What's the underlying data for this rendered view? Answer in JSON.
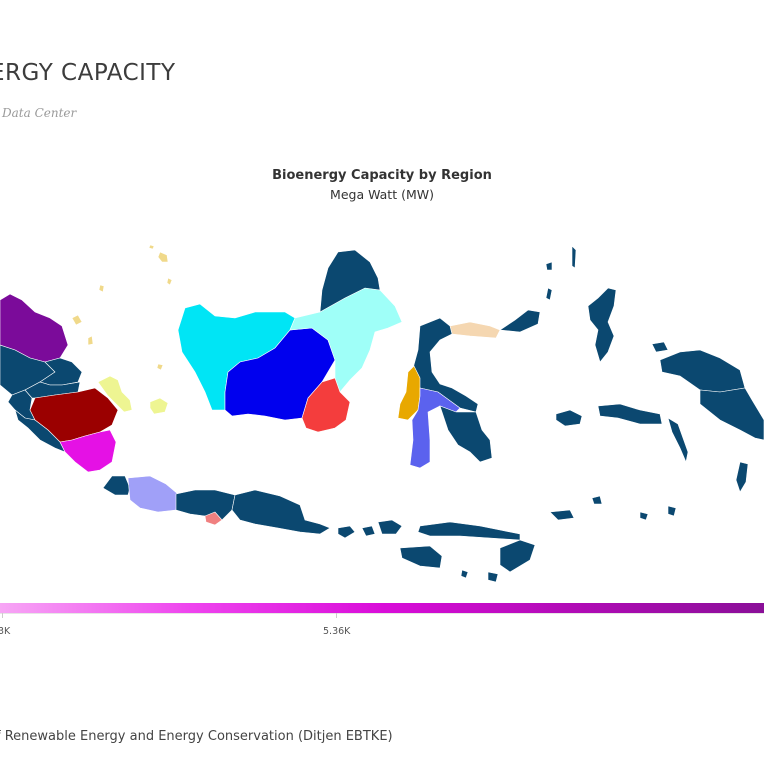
{
  "header": {
    "title": "ERGY CAPACITY",
    "subtitle": "Data Center"
  },
  "map": {
    "title": "Bioenergy Capacity by Region",
    "subtitle": "Mega Watt (MW)",
    "base_color": "#0b4870",
    "regions": [
      {
        "id": "aceh",
        "color": "#7b0b9a"
      },
      {
        "id": "north-sumatra",
        "color": "#0b4870"
      },
      {
        "id": "riau",
        "color": "#0b4870"
      },
      {
        "id": "west-sumatra",
        "color": "#0b4870"
      },
      {
        "id": "jambi",
        "color": "#0b4870"
      },
      {
        "id": "south-sumatra",
        "color": "#9b0000"
      },
      {
        "id": "bengkulu",
        "color": "#0b4870"
      },
      {
        "id": "lampung",
        "color": "#e511e5"
      },
      {
        "id": "riau-islands",
        "color": "#f0d98a"
      },
      {
        "id": "bangka-belitung",
        "color": "#eef592"
      },
      {
        "id": "west-kalimantan",
        "color": "#00e5f5"
      },
      {
        "id": "central-kalimantan",
        "color": "#0000ee"
      },
      {
        "id": "east-kalimantan",
        "color": "#9ffff8"
      },
      {
        "id": "north-kalimantan",
        "color": "#0b4870"
      },
      {
        "id": "south-kalimantan",
        "color": "#f43d3d"
      },
      {
        "id": "banten",
        "color": "#0b4870"
      },
      {
        "id": "west-java",
        "color": "#a0a0f8"
      },
      {
        "id": "yogyakarta",
        "color": "#f08080"
      },
      {
        "id": "central-java",
        "color": "#0b4870"
      },
      {
        "id": "east-java",
        "color": "#0b4870"
      },
      {
        "id": "west-sulawesi",
        "color": "#e8a800"
      },
      {
        "id": "south-sulawesi",
        "color": "#5b62ee"
      },
      {
        "id": "gorontalo",
        "color": "#f5d7b1"
      },
      {
        "id": "central-sulawesi",
        "color": "#0b4870"
      },
      {
        "id": "north-sulawesi",
        "color": "#0b4870"
      },
      {
        "id": "southeast-sulawesi",
        "color": "#0b4870"
      },
      {
        "id": "bali",
        "color": "#0b4870"
      },
      {
        "id": "ntb",
        "color": "#0b4870"
      },
      {
        "id": "ntt",
        "color": "#0b4870"
      },
      {
        "id": "maluku",
        "color": "#0b4870"
      },
      {
        "id": "north-maluku",
        "color": "#0b4870"
      },
      {
        "id": "west-papua",
        "color": "#0b4870"
      },
      {
        "id": "papua",
        "color": "#0b4870"
      }
    ]
  },
  "legend": {
    "labels": [
      "3K",
      "5.36K"
    ],
    "gradient_colors": [
      "#f7a6f5",
      "#ee44ee",
      "#d90dd9",
      "#b10bb6",
      "#8a0f98"
    ]
  },
  "footer": {
    "source": "f Renewable Energy and Energy Conservation (Ditjen EBTKE)"
  }
}
